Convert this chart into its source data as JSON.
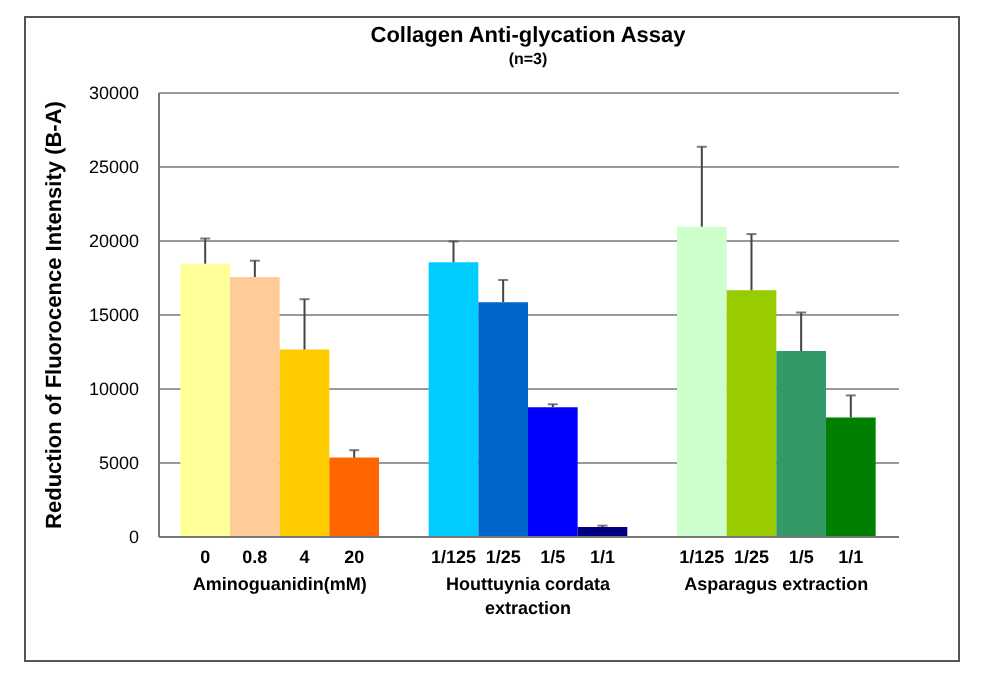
{
  "chart_data": {
    "type": "bar",
    "title": "Collagen Anti-glycation Assay",
    "subtitle": "(n=3)",
    "ylabel": "Reduction of Fluorocence Intensity (B-A)",
    "categories": [
      "0",
      "0.8",
      "4",
      "20",
      null,
      "1/125",
      "1/25",
      "1/5",
      "1/1",
      null,
      "1/125",
      "1/25",
      "1/5",
      "1/1"
    ],
    "values": [
      18400,
      17500,
      12600,
      5300,
      null,
      18500,
      15800,
      8700,
      600,
      null,
      20900,
      16600,
      12500,
      8000
    ],
    "colors": [
      "#ffff99",
      "#ffcc99",
      "#ffcc00",
      "#ff6600",
      null,
      "#00ccff",
      "#0066cc",
      "#0000ff",
      "#000080",
      null,
      "#ccffcc",
      "#99cc00",
      "#339966",
      "#008000"
    ],
    "errors": [
      [
        18400,
        20100
      ],
      [
        17500,
        18600
      ],
      [
        12600,
        16000
      ],
      [
        5300,
        5800
      ],
      null,
      [
        18500,
        19900
      ],
      [
        15800,
        17300
      ],
      [
        8700,
        8900
      ],
      [
        600,
        700
      ],
      null,
      [
        20900,
        26300
      ],
      [
        16600,
        20400
      ],
      [
        12500,
        15100
      ],
      [
        8000,
        9500
      ]
    ],
    "annotations": [
      "Aminoguanidin(mM)",
      "Houttuynia cordata extraction",
      "Asparagus extraction"
    ],
    "ylim": [
      0,
      30000
    ],
    "yticks": [
      0,
      5000,
      10000,
      15000,
      20000,
      25000,
      30000
    ],
    "grid": "y"
  }
}
